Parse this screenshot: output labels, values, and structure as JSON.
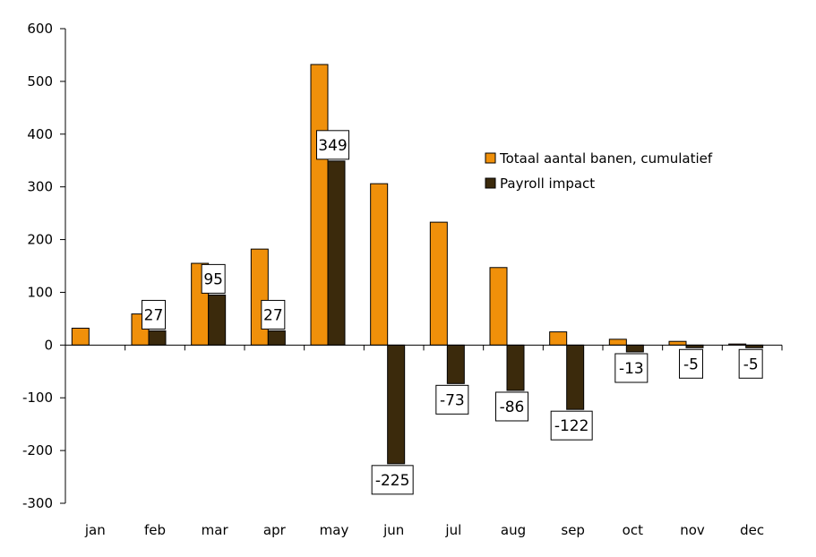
{
  "chart_data": {
    "type": "bar",
    "title": "",
    "xlabel": "",
    "ylabel": "",
    "ylim": [
      -300,
      600
    ],
    "yticks": [
      600,
      500,
      400,
      300,
      200,
      100,
      0,
      -100,
      -200,
      -300
    ],
    "grid": false,
    "legend_position": "right-upper",
    "categories": [
      "jan",
      "feb",
      "mar",
      "apr",
      "may",
      "jun",
      "jul",
      "aug",
      "sep",
      "oct",
      "nov",
      "dec"
    ],
    "series": [
      {
        "name": "Totaal aantal banen, cumulatief",
        "color": "#F0900A",
        "values": [
          32,
          59,
          155,
          182,
          532,
          306,
          233,
          147,
          25,
          11,
          7,
          2
        ],
        "data_labels": [
          null,
          null,
          null,
          null,
          null,
          null,
          null,
          null,
          null,
          null,
          null,
          null
        ]
      },
      {
        "name": "Payroll impact",
        "color": "#3B2A0C",
        "values": [
          0,
          27,
          95,
          27,
          349,
          -225,
          -73,
          -86,
          -122,
          -13,
          -5,
          -5
        ],
        "data_labels": [
          null,
          "27",
          "95",
          "27",
          "349",
          "-225",
          "-73",
          "-86",
          "-122",
          "-13",
          "-5",
          "-5"
        ]
      }
    ]
  }
}
